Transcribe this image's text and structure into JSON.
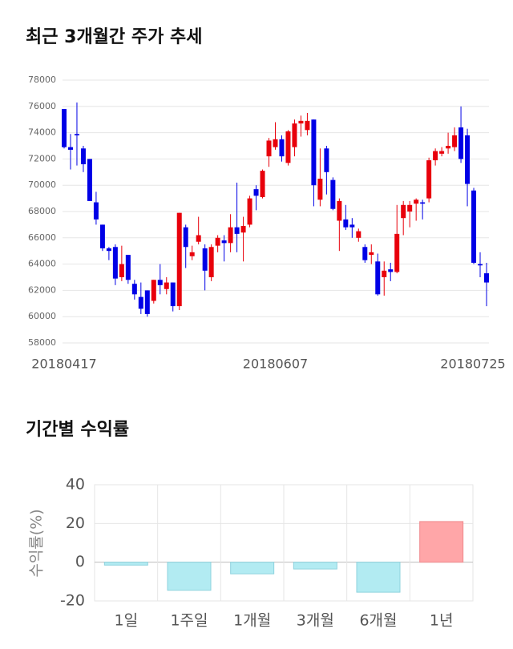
{
  "chart_data": [
    {
      "type": "candlestick",
      "title": "최근 3개월간 주가 추세",
      "categories": [
        "20180417",
        null,
        null,
        null,
        null,
        null,
        null,
        null,
        null,
        null,
        null,
        null,
        null,
        null,
        null,
        null,
        null,
        null,
        null,
        null,
        null,
        null,
        null,
        null,
        null,
        null,
        null,
        null,
        null,
        null,
        null,
        null,
        null,
        "20180607",
        null,
        null,
        null,
        null,
        null,
        null,
        null,
        null,
        null,
        null,
        null,
        null,
        null,
        null,
        null,
        null,
        null,
        null,
        null,
        null,
        null,
        null,
        null,
        null,
        null,
        null,
        null,
        null,
        null,
        null,
        "20180725",
        null,
        null
      ],
      "open": [
        75800,
        72900,
        73900,
        72800,
        72000,
        68700,
        67000,
        65200,
        65300,
        63000,
        64700,
        62500,
        61500,
        62000,
        61200,
        62800,
        62100,
        62600,
        60800,
        66800,
        64600,
        65700,
        65200,
        63000,
        65400,
        65800,
        65600,
        66800,
        66400,
        67000,
        69700,
        69100,
        72200,
        72900,
        73500,
        71700,
        72900,
        74700,
        74200,
        75000,
        68900,
        72800,
        70400,
        67300,
        67400,
        67000,
        66000,
        65300,
        64700,
        64200,
        63000,
        63600,
        63400,
        67500,
        68000,
        68600,
        68700,
        69000,
        71900,
        72400,
        72800,
        72900,
        74400,
        73800,
        69600,
        64000,
        63300
      ],
      "high": [
        75800,
        73900,
        76300,
        73000,
        72000,
        69500,
        67000,
        65300,
        65500,
        65400,
        64700,
        62800,
        62600,
        62000,
        62800,
        64000,
        63000,
        62600,
        67900,
        67000,
        65400,
        67600,
        65500,
        65500,
        66200,
        66200,
        67800,
        70200,
        67600,
        69200,
        70000,
        71200,
        73600,
        74800,
        73800,
        74200,
        75000,
        75300,
        75500,
        75000,
        72800,
        73000,
        70600,
        69000,
        68500,
        67500,
        66700,
        65500,
        65500,
        64800,
        64200,
        64100,
        68500,
        68800,
        68800,
        69000,
        68900,
        72100,
        72800,
        72900,
        74000,
        74400,
        76000,
        74300,
        69800,
        64900,
        64100
      ],
      "low": [
        72800,
        71200,
        71500,
        71000,
        68800,
        67000,
        65000,
        64300,
        62400,
        62700,
        62500,
        61300,
        60200,
        60000,
        61000,
        61700,
        61700,
        60400,
        60500,
        63700,
        64300,
        65500,
        62000,
        62700,
        64900,
        64200,
        64900,
        64900,
        64200,
        66800,
        68100,
        69000,
        71400,
        72700,
        71800,
        71500,
        72200,
        73700,
        73800,
        68400,
        68400,
        69300,
        68100,
        65000,
        66600,
        66000,
        65700,
        64100,
        64000,
        61600,
        61600,
        62700,
        63300,
        66200,
        66800,
        67300,
        67400,
        68700,
        71500,
        72200,
        72400,
        72600,
        71700,
        68400,
        64000,
        63000,
        60800
      ],
      "close": [
        72900,
        72700,
        73800,
        71600,
        68800,
        67400,
        65200,
        65000,
        62900,
        64000,
        62800,
        61700,
        60600,
        60200,
        62800,
        62400,
        62600,
        60800,
        67900,
        65300,
        64900,
        66200,
        63500,
        65300,
        66000,
        65600,
        66800,
        66300,
        66900,
        69000,
        69200,
        71100,
        73400,
        73500,
        72200,
        74100,
        74700,
        74900,
        74900,
        70000,
        70500,
        71000,
        68200,
        68800,
        66800,
        66800,
        66500,
        64300,
        64900,
        61700,
        63500,
        63400,
        66300,
        68500,
        68500,
        68900,
        68600,
        71900,
        72600,
        72600,
        73000,
        73800,
        72000,
        70100,
        64100,
        63900,
        62600
      ],
      "up_color": "#e8000b",
      "down_color": "#0000e6",
      "ylim": [
        58000,
        78000
      ],
      "yticks": [
        58000,
        60000,
        62000,
        64000,
        66000,
        68000,
        70000,
        72000,
        74000,
        76000,
        78000
      ],
      "grid": true
    },
    {
      "type": "bar",
      "title": "기간별 수익률",
      "ylabel": "수익률(%)",
      "categories": [
        "1일",
        "1주일",
        "1개월",
        "3개월",
        "6개월",
        "1년"
      ],
      "values": [
        -1.5,
        -14.5,
        -6,
        -3.5,
        -15.5,
        21
      ],
      "positive_color": "#ffa6a8",
      "negative_color": "#b2ebf2",
      "ylim": [
        -20,
        40
      ],
      "yticks": [
        -20,
        0,
        20,
        40
      ],
      "grid": true
    }
  ]
}
